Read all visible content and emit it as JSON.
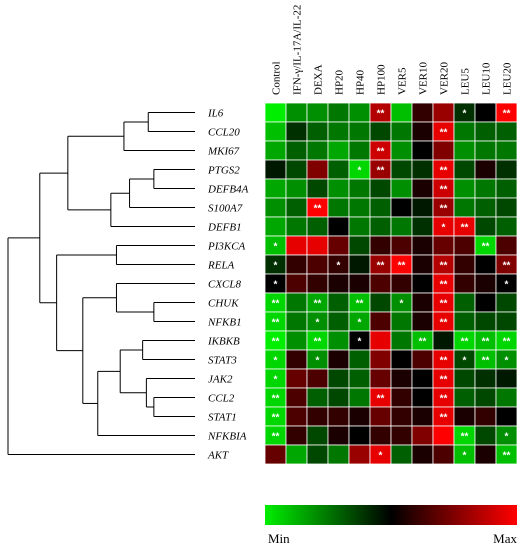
{
  "chart_data": {
    "type": "heatmap",
    "title": "",
    "x_labels": [
      "Control",
      "IFN-γ/IL-17A/IL-22",
      "DEXA",
      "HP20",
      "HP40",
      "HP100",
      "VER5",
      "VER10",
      "VER20",
      "LEU5",
      "LEU10",
      "LEU20"
    ],
    "y_labels": [
      "IL6",
      "CCL20",
      "MKI67",
      "PTGS2",
      "DEFB4A",
      "S100A7",
      "DEFB1",
      "PI3KCA",
      "RELA",
      "CXCL8",
      "CHUK",
      "NFKB1",
      "IKBKB",
      "STAT3",
      "JAK2",
      "CCL2",
      "STAT1",
      "NFKBIA",
      "AKT"
    ],
    "values": [
      [
        -1.0,
        -0.6,
        -0.6,
        -0.5,
        -0.6,
        0.7,
        -0.8,
        0.2,
        0.6,
        -0.2,
        0.0,
        1.0
      ],
      [
        -0.8,
        -0.2,
        -0.4,
        -0.5,
        -0.5,
        -0.3,
        -0.5,
        0.1,
        0.9,
        -0.5,
        -0.4,
        -0.4
      ],
      [
        -0.7,
        -0.4,
        -0.5,
        -0.7,
        -0.5,
        0.8,
        -0.6,
        0.0,
        0.5,
        -0.6,
        -0.5,
        -0.5
      ],
      [
        -0.1,
        -0.3,
        0.5,
        -0.4,
        -0.9,
        0.6,
        -0.3,
        -0.2,
        0.9,
        -0.3,
        0.1,
        -0.2
      ],
      [
        -0.7,
        -0.6,
        -0.3,
        -0.6,
        -0.5,
        -0.3,
        -0.6,
        0.1,
        0.8,
        -0.6,
        -0.5,
        -0.4
      ],
      [
        -0.6,
        -0.4,
        1.0,
        -0.5,
        -0.5,
        -0.4,
        0.0,
        -0.1,
        0.6,
        -0.5,
        -0.4,
        -0.3
      ],
      [
        -0.7,
        -0.5,
        -0.4,
        0.0,
        -0.5,
        -0.4,
        -0.5,
        -0.2,
        0.9,
        0.9,
        -0.3,
        -0.4
      ],
      [
        -0.8,
        0.9,
        0.9,
        0.4,
        -0.3,
        0.2,
        0.3,
        0.1,
        0.4,
        0.3,
        -0.9,
        0.3
      ],
      [
        -0.2,
        0.2,
        0.3,
        0.2,
        -0.1,
        0.6,
        1.0,
        0.1,
        0.7,
        0.2,
        0.0,
        0.5
      ],
      [
        0.0,
        0.3,
        0.2,
        0.1,
        0.1,
        0.3,
        0.2,
        0.0,
        0.9,
        0.2,
        0.1,
        0.0
      ],
      [
        -0.9,
        -0.5,
        -0.7,
        -0.4,
        -0.8,
        -0.3,
        -0.6,
        0.1,
        0.9,
        -0.4,
        0.0,
        -0.3
      ],
      [
        -0.9,
        -0.5,
        -0.6,
        -0.4,
        -0.7,
        0.3,
        -0.5,
        0.1,
        0.9,
        -0.4,
        -0.3,
        -0.3
      ],
      [
        -1.0,
        -0.6,
        -0.9,
        -0.6,
        0.0,
        0.9,
        -0.5,
        -0.8,
        -0.1,
        -0.9,
        -0.8,
        -0.9
      ],
      [
        -0.9,
        0.2,
        -0.6,
        0.1,
        -0.4,
        0.5,
        0.0,
        0.3,
        0.9,
        -0.3,
        -0.8,
        -0.6
      ],
      [
        -0.9,
        0.4,
        0.3,
        -0.3,
        -0.4,
        0.4,
        0.1,
        0.0,
        0.9,
        -0.3,
        -0.2,
        -0.1
      ],
      [
        -0.9,
        0.3,
        -0.4,
        -0.3,
        -0.5,
        0.9,
        0.2,
        0.0,
        0.9,
        -0.4,
        -0.3,
        -0.5
      ],
      [
        -0.9,
        0.3,
        0.2,
        0.2,
        0.1,
        0.4,
        0.2,
        0.1,
        0.9,
        0.1,
        0.2,
        0.0
      ],
      [
        -0.9,
        0.2,
        -0.3,
        0.1,
        0.0,
        0.2,
        0.2,
        0.5,
        1.0,
        -0.9,
        -0.3,
        -0.6
      ],
      [
        0.4,
        -0.7,
        -0.3,
        -0.5,
        0.6,
        0.9,
        -0.4,
        0.1,
        0.3,
        -0.8,
        0.1,
        -0.8
      ]
    ],
    "significance": [
      [
        "",
        "",
        "",
        "",
        "",
        "**",
        "",
        "",
        "",
        "*",
        "",
        "**"
      ],
      [
        "",
        "",
        "",
        "",
        "",
        "",
        "",
        "",
        "**",
        "",
        "",
        ""
      ],
      [
        "",
        "",
        "",
        "",
        "",
        "**",
        "",
        "",
        "",
        "",
        "",
        ""
      ],
      [
        "",
        "",
        "",
        "",
        "*",
        "**",
        "",
        "",
        "**",
        "",
        "",
        ""
      ],
      [
        "",
        "",
        "",
        "",
        "",
        "",
        "",
        "",
        "**",
        "",
        "",
        ""
      ],
      [
        "",
        "",
        "**",
        "",
        "",
        "",
        "",
        "",
        "**",
        "",
        "",
        ""
      ],
      [
        "",
        "",
        "",
        "",
        "",
        "",
        "",
        "",
        "*",
        "**",
        "",
        ""
      ],
      [
        "*",
        "",
        "",
        "",
        "",
        "",
        "",
        "",
        "",
        "",
        "**",
        ""
      ],
      [
        "*",
        "",
        "",
        "*",
        "",
        "**",
        "**",
        "",
        "**",
        "",
        "",
        "**"
      ],
      [
        "*",
        "",
        "",
        "",
        "",
        "",
        "",
        "",
        "**",
        "",
        "",
        "*"
      ],
      [
        "**",
        "",
        "**",
        "",
        "**",
        "",
        "*",
        "",
        "**",
        "",
        "",
        ""
      ],
      [
        "**",
        "",
        "*",
        "",
        "*",
        "",
        "",
        "",
        "**",
        "",
        "",
        ""
      ],
      [
        "**",
        "",
        "**",
        "",
        "*",
        "",
        "",
        "**",
        "",
        "**",
        "**",
        "**"
      ],
      [
        "*",
        "",
        "*",
        "",
        "",
        "",
        "",
        "",
        "**",
        "*",
        "**",
        "*"
      ],
      [
        "*",
        "",
        "",
        "",
        "",
        "",
        "",
        "",
        "**",
        "",
        "",
        ""
      ],
      [
        "**",
        "",
        "",
        "",
        "",
        "**",
        "",
        "",
        "**",
        "",
        "",
        ""
      ],
      [
        "**",
        "",
        "",
        "",
        "",
        "",
        "",
        "",
        "**",
        "",
        "",
        ""
      ],
      [
        "**",
        "",
        "",
        "",
        "",
        "",
        "",
        "",
        "",
        "**",
        "",
        "*"
      ],
      [
        "",
        "",
        "",
        "",
        "",
        "*",
        "",
        "",
        "",
        "*",
        "",
        "**"
      ]
    ],
    "dendrogram": {
      "leaves": [
        "IL6",
        "CCL20",
        "MKI67",
        "PTGS2",
        "DEFB4A",
        "S100A7",
        "DEFB1",
        "PI3KCA",
        "RELA",
        "CXCL8",
        "CHUK",
        "NFKB1",
        "IKBKB",
        "STAT3",
        "JAK2",
        "CCL2",
        "STAT1",
        "NFKBIA",
        "AKT"
      ],
      "merges": [
        {
          "a": "IL6",
          "b": "CCL20",
          "height": 0.25
        },
        {
          "a": "m0",
          "b": "MKI67",
          "height": 0.38
        },
        {
          "a": "PTGS2",
          "b": "DEFB4A",
          "height": 0.22
        },
        {
          "a": "m2",
          "b": "S100A7",
          "height": 0.35
        },
        {
          "a": "m3",
          "b": "DEFB1",
          "height": 0.45
        },
        {
          "a": "m1",
          "b": "m4",
          "height": 0.68
        },
        {
          "a": "PI3KCA",
          "b": "RELA",
          "height": 0.42
        },
        {
          "a": "CHUK",
          "b": "NFKB1",
          "height": 0.22
        },
        {
          "a": "CXCL8",
          "b": "m7",
          "height": 0.42
        },
        {
          "a": "IKBKB",
          "b": "STAT3",
          "height": 0.28
        },
        {
          "a": "CCL2",
          "b": "STAT1",
          "height": 0.22
        },
        {
          "a": "JAK2",
          "b": "m10",
          "height": 0.26
        },
        {
          "a": "m9",
          "b": "m11",
          "height": 0.4
        },
        {
          "a": "m12",
          "b": "NFKBIA",
          "height": 0.52
        },
        {
          "a": "m8",
          "b": "m13",
          "height": 0.6
        },
        {
          "a": "m6",
          "b": "m14",
          "height": 0.74
        },
        {
          "a": "m5",
          "b": "m15",
          "height": 0.83
        },
        {
          "a": "m16",
          "b": "AKT",
          "height": 1.0
        }
      ]
    },
    "colorscale": {
      "min_color": "#00ee00",
      "mid_color": "#000000",
      "max_color": "#ff0000"
    },
    "legend": {
      "min_label": "Min",
      "max_label": "Max"
    },
    "star_color": "#ffffff",
    "grid": true
  }
}
